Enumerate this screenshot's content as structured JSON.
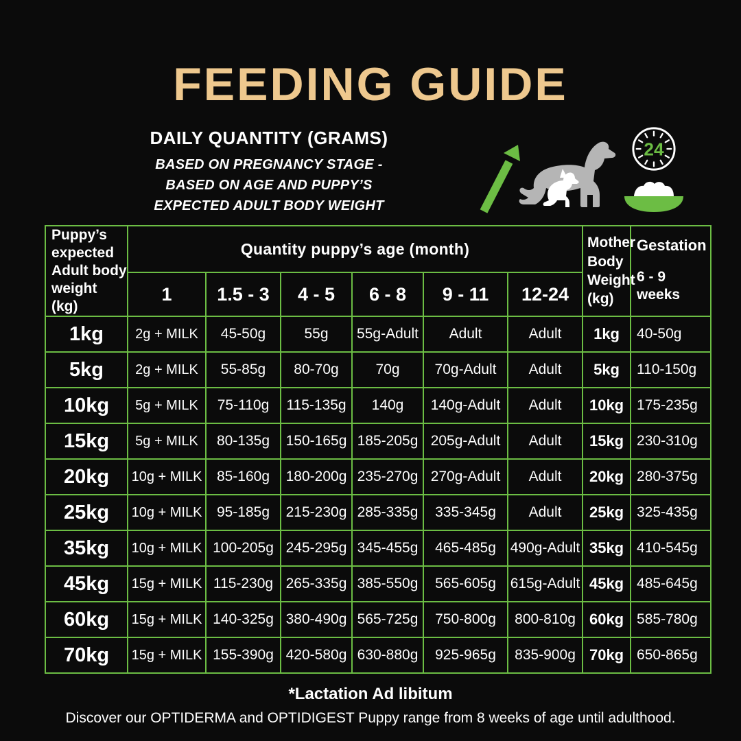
{
  "header": {
    "title": "FEEDING GUIDE",
    "subtitle": "DAILY QUANTITY (GRAMS)",
    "note_lines": [
      "BASED ON PREGNANCY STAGE -",
      "BASED ON AGE AND PUPPY’S",
      "EXPECTED ADULT BODY WEIGHT"
    ]
  },
  "icons": {
    "clock_label": "24",
    "arrow": "growth-arrow",
    "dog": "adult-dog-with-puppy",
    "clock": "24-hour-clock",
    "bowl": "food-bowl"
  },
  "colors": {
    "background": "#0b0b0b",
    "title_gold": "#eec88e",
    "accent_green": "#6cbd44",
    "text_white": "#ffffff",
    "dog_gray": "#b5b5b5"
  },
  "chart_data": {
    "type": "table",
    "title": "FEEDING GUIDE",
    "corner_header": "Puppy’s\nexpected\nAdult body\nweight (kg)",
    "group_header": "Quantity puppy’s age (month)",
    "age_columns": [
      "1",
      "1.5 - 3",
      "4 - 5",
      "6 - 8",
      "9 - 11",
      "12-24"
    ],
    "mother_header": "Mother\nBody\nWeight\n(kg)",
    "gestation_header": "Gestation",
    "gestation_subheader": "6 - 9\nweeks",
    "rows": [
      {
        "weight": "1kg",
        "quantities": [
          "2g + MILK",
          "45-50g",
          "55g",
          "55g-Adult",
          "Adult",
          "Adult"
        ],
        "mother": "1kg",
        "gestation": "40-50g"
      },
      {
        "weight": "5kg",
        "quantities": [
          "2g + MILK",
          "55-85g",
          "80-70g",
          "70g",
          "70g-Adult",
          "Adult"
        ],
        "mother": "5kg",
        "gestation": "110-150g"
      },
      {
        "weight": "10kg",
        "quantities": [
          "5g + MILK",
          "75-110g",
          "115-135g",
          "140g",
          "140g-Adult",
          "Adult"
        ],
        "mother": "10kg",
        "gestation": "175-235g"
      },
      {
        "weight": "15kg",
        "quantities": [
          "5g + MILK",
          "80-135g",
          "150-165g",
          "185-205g",
          "205g-Adult",
          "Adult"
        ],
        "mother": "15kg",
        "gestation": "230-310g"
      },
      {
        "weight": "20kg",
        "quantities": [
          "10g + MILK",
          "85-160g",
          "180-200g",
          "235-270g",
          "270g-Adult",
          "Adult"
        ],
        "mother": "20kg",
        "gestation": "280-375g"
      },
      {
        "weight": "25kg",
        "quantities": [
          "10g + MILK",
          "95-185g",
          "215-230g",
          "285-335g",
          "335-345g",
          "Adult"
        ],
        "mother": "25kg",
        "gestation": "325-435g"
      },
      {
        "weight": "35kg",
        "quantities": [
          "10g + MILK",
          "100-205g",
          "245-295g",
          "345-455g",
          "465-485g",
          "490g-Adult"
        ],
        "mother": "35kg",
        "gestation": "410-545g"
      },
      {
        "weight": "45kg",
        "quantities": [
          "15g + MILK",
          "115-230g",
          "265-335g",
          "385-550g",
          "565-605g",
          "615g-Adult"
        ],
        "mother": "45kg",
        "gestation": "485-645g"
      },
      {
        "weight": "60kg",
        "quantities": [
          "15g + MILK",
          "140-325g",
          "380-490g",
          "565-725g",
          "750-800g",
          "800-810g"
        ],
        "mother": "60kg",
        "gestation": "585-780g"
      },
      {
        "weight": "70kg",
        "quantities": [
          "15g + MILK",
          "155-390g",
          "420-580g",
          "630-880g",
          "925-965g",
          "835-900g"
        ],
        "mother": "70kg",
        "gestation": "650-865g"
      }
    ]
  },
  "footer": {
    "note": "*Lactation Ad libitum",
    "discover": "Discover our OPTIDERMA and OPTIDIGEST Puppy range from 8 weeks of age until adulthood."
  }
}
